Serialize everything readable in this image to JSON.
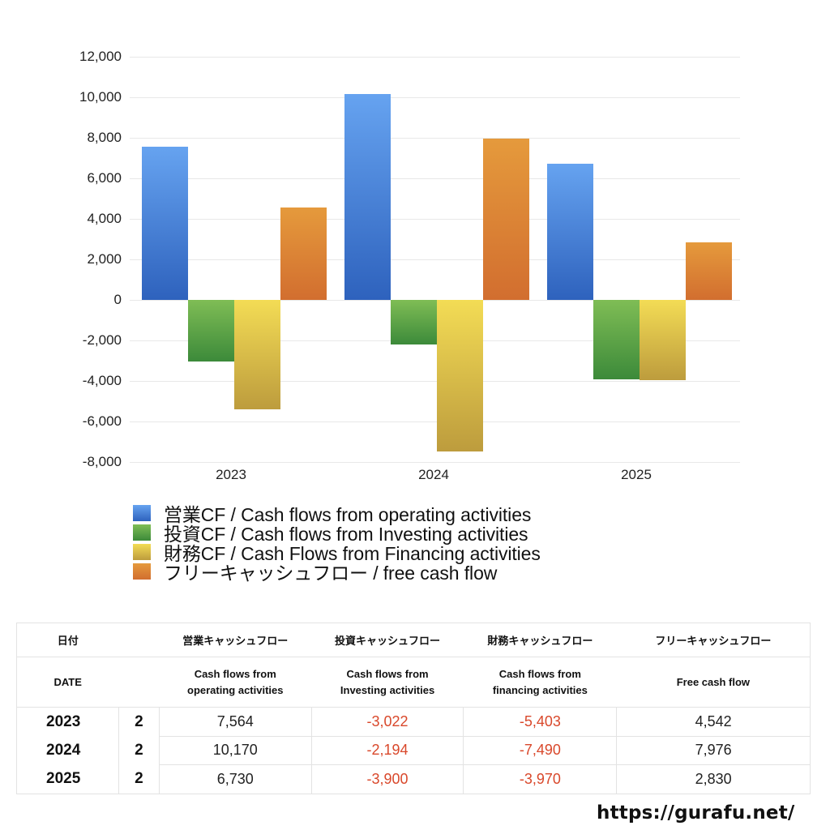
{
  "chart_data": {
    "type": "bar",
    "title": "",
    "xlabel": "",
    "ylabel": "",
    "categories": [
      "2023",
      "2024",
      "2025"
    ],
    "ylim": [
      -8000,
      12000
    ],
    "yticks": [
      12000,
      10000,
      8000,
      6000,
      4000,
      2000,
      0,
      -2000,
      -4000,
      -6000,
      -8000
    ],
    "ytick_labels": [
      "12,000",
      "10,000",
      "8,000",
      "6,000",
      "4,000",
      "2,000",
      "0",
      "-2,000",
      "-4,000",
      "-6,000",
      "-8,000"
    ],
    "grid": true,
    "legend_position": "bottom",
    "series": [
      {
        "name": "営業CF / Cash flows from operating activities",
        "values": [
          7564,
          10170,
          6730
        ],
        "color_top": "#66a3f0",
        "color_bottom": "#2e62bd"
      },
      {
        "name": "投資CF / Cash flows from Investing activities",
        "values": [
          -3022,
          -2194,
          -3900
        ],
        "color_top": "#7fbd55",
        "color_bottom": "#3c8a3a"
      },
      {
        "name": "財務CF / Cash Flows from Financing activities",
        "values": [
          -5403,
          -7490,
          -3970
        ],
        "color_top": "#f3dc55",
        "color_bottom": "#bd9c3d"
      },
      {
        "name": "フリーキャッシュフロー / free cash flow",
        "values": [
          4542,
          7976,
          2830
        ],
        "color_top": "#e59a3c",
        "color_bottom": "#d26e2f"
      }
    ]
  },
  "legend": {
    "items": [
      {
        "label": "営業CF / Cash flows from operating activities"
      },
      {
        "label": "投資CF / Cash flows from Investing activities"
      },
      {
        "label": "財務CF / Cash Flows from Financing activities"
      },
      {
        "label": "フリーキャッシュフロー / free cash flow"
      }
    ]
  },
  "table": {
    "header_jp": [
      "日付",
      "",
      "営業キャッシュフロー",
      "投資キャッシュフロー",
      "財務キャッシュフロー",
      "フリーキャッシュフロー"
    ],
    "header_en": [
      "DATE",
      "",
      "Cash flows from operating activities",
      "Cash flows from Investing activities",
      "Cash flows from financing activities",
      "Free cash flow"
    ],
    "header_en_lines": [
      [
        "DATE"
      ],
      [
        ""
      ],
      [
        "Cash flows from",
        "operating activities"
      ],
      [
        "Cash flows from",
        "Investing activities"
      ],
      [
        "Cash flows from",
        "financing activities"
      ],
      [
        "Free cash flow"
      ]
    ],
    "rows": [
      {
        "year": "2023",
        "quarter": "2",
        "operating": "7,564",
        "investing": "-3,022",
        "financing": "-5,403",
        "free": "4,542"
      },
      {
        "year": "2024",
        "quarter": "2",
        "operating": "10,170",
        "investing": "-2,194",
        "financing": "-7,490",
        "free": "7,976"
      },
      {
        "year": "2025",
        "quarter": "2",
        "operating": "6,730",
        "investing": "-3,900",
        "financing": "-3,970",
        "free": "2,830"
      }
    ],
    "negative_color": "#d9482b"
  },
  "footer": {
    "url_text": "https://gurafu.net/"
  }
}
